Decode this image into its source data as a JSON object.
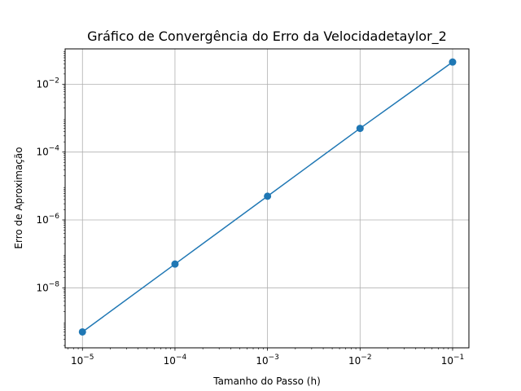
{
  "chart_data": {
    "type": "line",
    "title": "Gráfico de Convergência do Erro da Velocidadetaylor_2",
    "xlabel": "Tamanho do Passo (h)",
    "ylabel": "Erro de Aproximação",
    "xscale": "log",
    "yscale": "log",
    "xlim": [
      6.5e-06,
      0.15
    ],
    "ylim": [
      1.7e-10,
      0.11
    ],
    "grid": true,
    "x_ticks": [
      {
        "value": 1e-05,
        "base": "10",
        "exp": "−5"
      },
      {
        "value": 0.0001,
        "base": "10",
        "exp": "−4"
      },
      {
        "value": 0.001,
        "base": "10",
        "exp": "−3"
      },
      {
        "value": 0.01,
        "base": "10",
        "exp": "−2"
      },
      {
        "value": 0.1,
        "base": "10",
        "exp": "−1"
      }
    ],
    "y_ticks": [
      {
        "value": 1e-08,
        "base": "10",
        "exp": "−8"
      },
      {
        "value": 1e-06,
        "base": "10",
        "exp": "−6"
      },
      {
        "value": 0.0001,
        "base": "10",
        "exp": "−4"
      },
      {
        "value": 0.01,
        "base": "10",
        "exp": "−2"
      }
    ],
    "series": [
      {
        "x": [
          1e-05,
          0.0001,
          0.001,
          0.01,
          0.1
        ],
        "y": [
          5e-10,
          5e-08,
          5e-06,
          0.0005,
          0.045
        ],
        "color": "#1f77b4",
        "marker": "circle"
      }
    ]
  }
}
